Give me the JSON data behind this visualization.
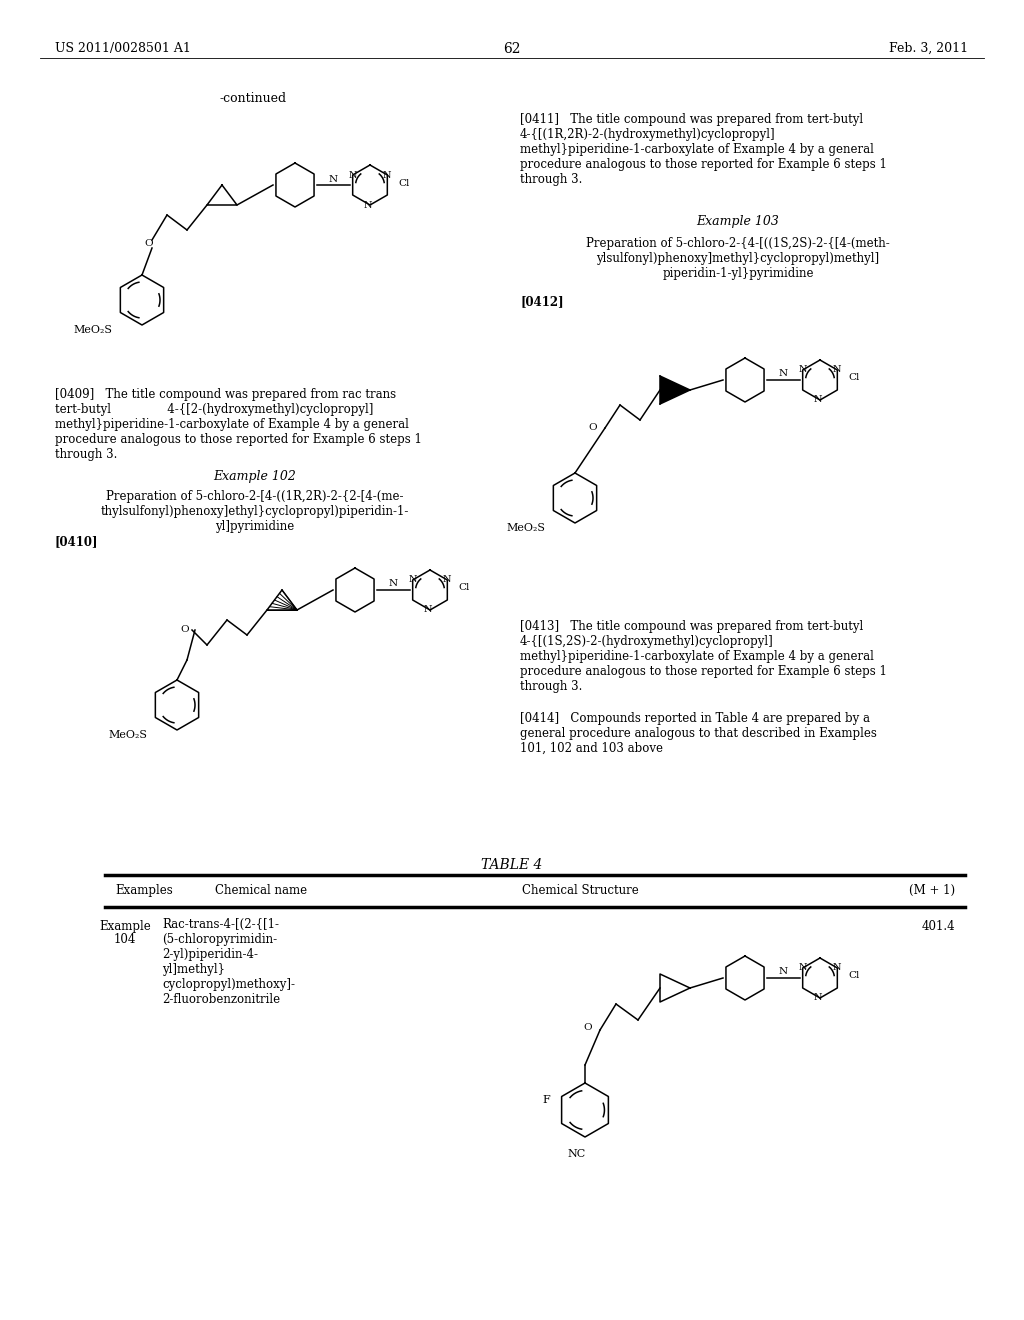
{
  "page_number": "62",
  "patent_number": "US 2011/0028501 A1",
  "patent_date": "Feb. 3, 2011",
  "background_color": "#ffffff",
  "text_color": "#000000"
}
